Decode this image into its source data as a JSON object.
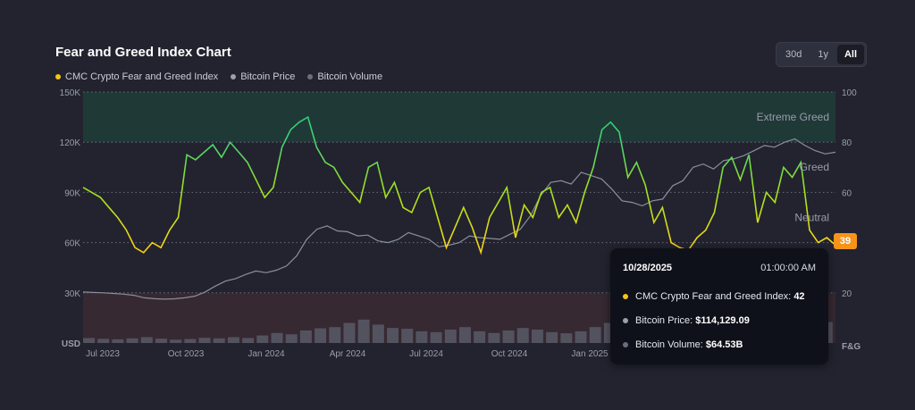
{
  "header": {
    "title": "Fear and Greed Index Chart"
  },
  "range": {
    "options": [
      "30d",
      "1y",
      "All"
    ],
    "active": "All"
  },
  "legend": [
    {
      "label": "CMC Crypto Fear and Greed Index",
      "color": "#f5c518"
    },
    {
      "label": "Bitcoin Price",
      "color": "#9aa0ac"
    },
    {
      "label": "Bitcoin Volume",
      "color": "#6b6f7c"
    }
  ],
  "chart_data": {
    "type": "line",
    "x_ticks": [
      "Jul 2023",
      "Oct 2023",
      "Jan 2024",
      "Apr 2024",
      "Jul 2024",
      "Oct 2024",
      "Jan 2025"
    ],
    "left_axis": {
      "unit": "USD",
      "ticks": [
        "30K",
        "60K",
        "90K",
        "120K",
        "150K"
      ],
      "range": [
        0,
        150000
      ]
    },
    "right_axis": {
      "unit": "F&G",
      "ticks": [
        "20",
        "40",
        "60",
        "80",
        "100"
      ],
      "range": [
        0,
        100
      ]
    },
    "zones": [
      {
        "label": "Extreme Greed",
        "from": 80,
        "to": 100,
        "color": "#1e3d38"
      },
      {
        "label": "Greed",
        "from": 60,
        "to": 80
      },
      {
        "label": "Neutral",
        "from": 40,
        "to": 60
      },
      {
        "label": "",
        "from": 0,
        "to": 20,
        "color": "#3a2a33"
      }
    ],
    "series": [
      {
        "name": "CMC Crypto Fear and Greed Index",
        "axis": "right",
        "values": [
          62,
          60,
          58,
          54,
          50,
          45,
          38,
          36,
          40,
          38,
          45,
          50,
          75,
          73,
          76,
          79,
          74,
          80,
          76,
          72,
          65,
          58,
          62,
          78,
          85,
          88,
          90,
          78,
          72,
          70,
          64,
          60,
          56,
          70,
          72,
          58,
          64,
          54,
          52,
          60,
          62,
          50,
          38,
          46,
          54,
          46,
          36,
          50,
          56,
          62,
          42,
          55,
          50,
          60,
          62,
          50,
          55,
          48,
          60,
          70,
          85,
          88,
          84,
          66,
          72,
          63,
          48,
          54,
          40,
          38,
          37,
          42,
          45,
          52,
          70,
          74,
          65,
          75,
          48,
          60,
          56,
          70,
          66,
          72,
          45,
          40,
          42,
          39
        ]
      },
      {
        "name": "Bitcoin Price",
        "axis": "left",
        "values": [
          30500,
          30200,
          30000,
          29600,
          29200,
          28500,
          27000,
          26500,
          26200,
          26400,
          27000,
          28000,
          30500,
          34000,
          37000,
          38500,
          41000,
          43000,
          42000,
          43500,
          46000,
          52000,
          62000,
          68000,
          70000,
          67000,
          66500,
          64000,
          64500,
          61000,
          60000,
          62000,
          66000,
          64000,
          62000,
          57500,
          58500,
          60000,
          64000,
          63000,
          62500,
          62000,
          65000,
          68000,
          76000,
          88000,
          96000,
          97000,
          95000,
          102000,
          100000,
          98000,
          92000,
          85000,
          84000,
          82000,
          85000,
          86000,
          94000,
          97000,
          105000,
          107000,
          104000,
          109000,
          110000,
          112000,
          115000,
          118000,
          117000,
          120000,
          122000,
          118000,
          115000,
          113000,
          114000
        ]
      },
      {
        "name": "Bitcoin Volume",
        "axis": "left",
        "values": [
          3000,
          2500,
          2200,
          2800,
          3500,
          2600,
          2000,
          2400,
          3100,
          2800,
          3500,
          3000,
          4500,
          6000,
          5200,
          7500,
          8800,
          9500,
          12000,
          14000,
          11000,
          9000,
          8500,
          7000,
          6500,
          8000,
          9500,
          7000,
          6000,
          7500,
          9000,
          8000,
          6500,
          5800,
          7000,
          9500,
          12000,
          14500,
          16000,
          19000,
          15000,
          13000,
          12000,
          10500,
          11000,
          13000,
          12000,
          11000,
          10000,
          9500,
          11500,
          12500
        ]
      }
    ],
    "tooltip": {
      "date": "10/28/2025",
      "time": "01:00:00 AM",
      "rows": [
        {
          "label": "CMC Crypto Fear and Greed Index:",
          "value": "42",
          "color": "#f5c518"
        },
        {
          "label": "Bitcoin Price:",
          "value": "$114,129.09",
          "color": "#9aa0ac"
        },
        {
          "label": "Bitcoin Volume:",
          "value": "$64.53B",
          "color": "#6b6f7c"
        }
      ]
    },
    "current_value_badge": "39"
  }
}
